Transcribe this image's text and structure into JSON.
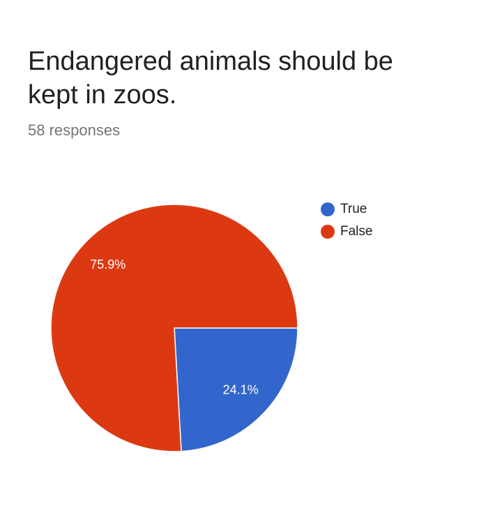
{
  "chart_data": {
    "type": "pie",
    "title": "Endangered animals should be kept in zoos.",
    "subtitle": "58 responses",
    "categories": [
      "True",
      "False"
    ],
    "values": [
      24.1,
      75.9
    ],
    "value_labels": [
      "24.1%",
      "75.9%"
    ],
    "colors": [
      "#3366cc",
      "#dc3912"
    ],
    "legend": "right"
  }
}
